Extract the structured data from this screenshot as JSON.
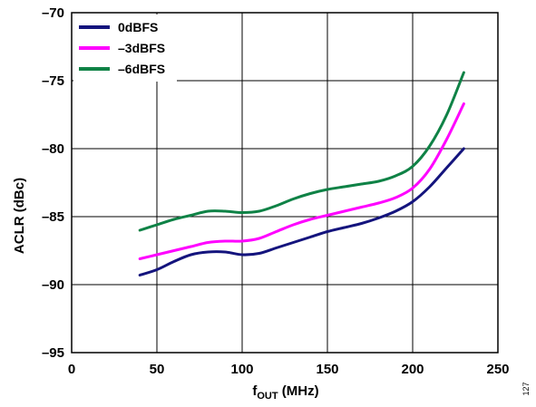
{
  "chart_data": {
    "type": "line",
    "xlabel": {
      "main": "f",
      "sub": "OUT",
      "rest": " (MHz)"
    },
    "ylabel": "ACLR (dBc)",
    "xlim": [
      0,
      250
    ],
    "ylim": [
      -95,
      -70
    ],
    "xticks": [
      {
        "v": 0,
        "label": "0"
      },
      {
        "v": 50,
        "label": "50"
      },
      {
        "v": 100,
        "label": "100"
      },
      {
        "v": 150,
        "label": "150"
      },
      {
        "v": 200,
        "label": "200"
      },
      {
        "v": 250,
        "label": "250"
      }
    ],
    "yticks": [
      {
        "v": -70,
        "label": "–70"
      },
      {
        "v": -75,
        "label": "–75"
      },
      {
        "v": -80,
        "label": "–80"
      },
      {
        "v": -85,
        "label": "–85"
      },
      {
        "v": -90,
        "label": "–90"
      },
      {
        "v": -95,
        "label": "–95"
      }
    ],
    "grid": true,
    "legend_position": "top-left",
    "series": [
      {
        "name": "0dBFS",
        "color": "#14147d",
        "points": [
          [
            40,
            -89.3
          ],
          [
            50,
            -88.9
          ],
          [
            60,
            -88.3
          ],
          [
            70,
            -87.8
          ],
          [
            80,
            -87.6
          ],
          [
            90,
            -87.6
          ],
          [
            100,
            -87.8
          ],
          [
            110,
            -87.7
          ],
          [
            120,
            -87.3
          ],
          [
            130,
            -86.9
          ],
          [
            140,
            -86.5
          ],
          [
            150,
            -86.1
          ],
          [
            160,
            -85.8
          ],
          [
            170,
            -85.5
          ],
          [
            180,
            -85.1
          ],
          [
            190,
            -84.6
          ],
          [
            200,
            -83.9
          ],
          [
            210,
            -82.8
          ],
          [
            220,
            -81.4
          ],
          [
            230,
            -80.0
          ]
        ]
      },
      {
        "name": "–3dBFS",
        "color": "#ff00ff",
        "points": [
          [
            40,
            -88.1
          ],
          [
            50,
            -87.8
          ],
          [
            60,
            -87.5
          ],
          [
            70,
            -87.2
          ],
          [
            80,
            -86.9
          ],
          [
            90,
            -86.8
          ],
          [
            100,
            -86.8
          ],
          [
            110,
            -86.6
          ],
          [
            120,
            -86.1
          ],
          [
            130,
            -85.6
          ],
          [
            140,
            -85.2
          ],
          [
            150,
            -84.9
          ],
          [
            160,
            -84.6
          ],
          [
            170,
            -84.3
          ],
          [
            180,
            -84.0
          ],
          [
            190,
            -83.6
          ],
          [
            200,
            -82.9
          ],
          [
            210,
            -81.5
          ],
          [
            220,
            -79.3
          ],
          [
            230,
            -76.7
          ]
        ]
      },
      {
        "name": "–6dBFS",
        "color": "#0f8246",
        "points": [
          [
            40,
            -86.0
          ],
          [
            50,
            -85.6
          ],
          [
            60,
            -85.2
          ],
          [
            70,
            -84.9
          ],
          [
            80,
            -84.6
          ],
          [
            90,
            -84.6
          ],
          [
            100,
            -84.7
          ],
          [
            110,
            -84.6
          ],
          [
            120,
            -84.2
          ],
          [
            130,
            -83.7
          ],
          [
            140,
            -83.3
          ],
          [
            150,
            -83.0
          ],
          [
            160,
            -82.8
          ],
          [
            170,
            -82.6
          ],
          [
            180,
            -82.4
          ],
          [
            190,
            -82.0
          ],
          [
            200,
            -81.3
          ],
          [
            210,
            -79.8
          ],
          [
            220,
            -77.5
          ],
          [
            230,
            -74.4
          ]
        ]
      }
    ]
  },
  "figure_id": "127"
}
